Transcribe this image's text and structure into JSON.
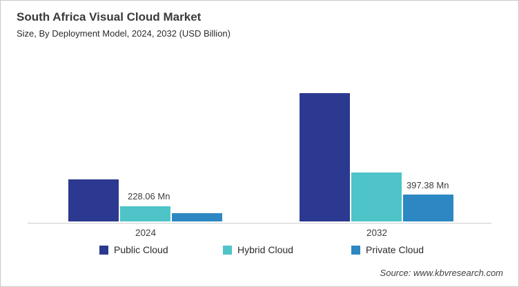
{
  "header": {
    "title": "South Africa Visual Cloud Market",
    "subtitle": "Size, By Deployment Model, 2024, 2032 (USD Billion)"
  },
  "footer": {
    "source": "Source: www.kbvresearch.com"
  },
  "chart_data": {
    "type": "bar",
    "title": "South Africa Visual Cloud Market",
    "subtitle": "Size, By Deployment Model, 2024, 2032 (USD Billion)",
    "categories": [
      "2024",
      "2032"
    ],
    "series": [
      {
        "name": "Public Cloud",
        "color": "#2B3990",
        "values_mn": [
          620,
          1900
        ]
      },
      {
        "name": "Hybrid Cloud",
        "color": "#4EC3C8",
        "values_mn": [
          228.06,
          720
        ]
      },
      {
        "name": "Private Cloud",
        "color": "#2D87C3",
        "values_mn": [
          120,
          397.38
        ]
      }
    ],
    "data_labels": [
      {
        "text": "228.06 Mn",
        "series": "Hybrid Cloud",
        "category": "2024"
      },
      {
        "text": "397.38 Mn",
        "series": "Private Cloud",
        "category": "2032"
      }
    ],
    "unit": "Mn",
    "ylim_mn": [
      0,
      1950
    ],
    "grid": false,
    "legend_position": "bottom"
  }
}
